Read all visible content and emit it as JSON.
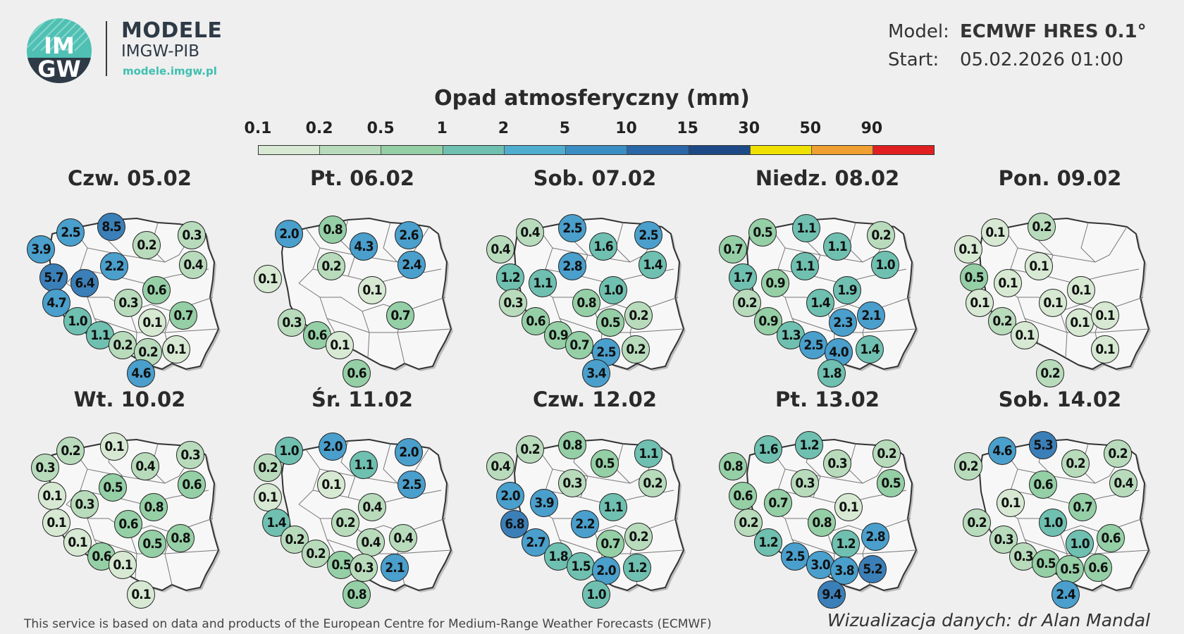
{
  "brand": {
    "logo_text_top": "IM",
    "logo_text_bottom": "GW",
    "title": "MODELE",
    "subtitle": "IMGW-PIB",
    "url": "modele.imgw.pl"
  },
  "meta": {
    "model_label": "Model:",
    "model_value": "ECMWF HRES 0.1°",
    "start_label": "Start:",
    "start_value": "05.02.2026 01:00"
  },
  "legend": {
    "title": "Opad atmosferyczny (mm)",
    "ticks": [
      "0.1",
      "0.2",
      "0.5",
      "1",
      "2",
      "5",
      "10",
      "15",
      "30",
      "50",
      "90"
    ],
    "colors": [
      "#d7e9d3",
      "#b8dbbc",
      "#95cfa6",
      "#6fc0b0",
      "#4faed0",
      "#3b8ec4",
      "#2967a8",
      "#1d4a86",
      "#f0e000",
      "#f0a030",
      "#e02020"
    ]
  },
  "panels": [
    {
      "title": "Czw. 05.02",
      "values": [
        "2.5",
        "8.5",
        "0.2",
        "0.3",
        "3.9",
        "2.2",
        "0.4",
        "5.7",
        "6.4",
        "0.6",
        "0.3",
        "4.7",
        "1.0",
        "0.1",
        "0.7",
        "1.1",
        "0.2",
        "0.2",
        "0.1",
        "4.6"
      ]
    },
    {
      "title": "Pt. 06.02",
      "values": [
        "2.0",
        "0.8",
        "4.3",
        "2.6",
        "0.2",
        "2.4",
        "0.1",
        "0.1",
        "0.7",
        "0.3",
        "0.6",
        "0.1",
        "0.6"
      ]
    },
    {
      "title": "Sob. 07.02",
      "values": [
        "0.4",
        "2.5",
        "2.5",
        "0.4",
        "1.6",
        "2.8",
        "1.4",
        "1.2",
        "1.1",
        "1.0",
        "0.3",
        "0.8",
        "0.6",
        "0.5",
        "0.2",
        "0.9",
        "0.7",
        "2.5",
        "0.2",
        "3.4"
      ]
    },
    {
      "title": "Niedz. 08.02",
      "values": [
        "0.5",
        "1.1",
        "0.2",
        "0.7",
        "1.1",
        "1.1",
        "1.0",
        "1.7",
        "0.9",
        "1.9",
        "0.2",
        "1.4",
        "0.9",
        "2.3",
        "2.1",
        "1.3",
        "2.5",
        "4.0",
        "1.4",
        "1.8"
      ]
    },
    {
      "title": "Pon. 09.02",
      "values": [
        "0.1",
        "0.2",
        "0.1",
        "0.1",
        "0.5",
        "0.1",
        "0.1",
        "0.1",
        "0.1",
        "0.2",
        "0.1",
        "0.1",
        "0.1",
        "0.1",
        "0.2"
      ]
    },
    {
      "title": "Wt. 10.02",
      "values": [
        "0.2",
        "0.1",
        "0.3",
        "0.3",
        "0.4",
        "0.1",
        "0.6",
        "0.5",
        "0.3",
        "0.8",
        "0.1",
        "0.6",
        "0.1",
        "0.5",
        "0.8",
        "0.6",
        "0.1",
        "0.1"
      ]
    },
    {
      "title": "Śr. 11.02",
      "values": [
        "1.0",
        "2.0",
        "2.0",
        "0.2",
        "1.1",
        "0.1",
        "2.5",
        "0.1",
        "0.4",
        "1.4",
        "0.2",
        "0.2",
        "0.2",
        "0.4",
        "0.4",
        "0.5",
        "0.3",
        "2.1",
        "0.8"
      ]
    },
    {
      "title": "Czw. 12.02",
      "values": [
        "0.2",
        "0.8",
        "1.1",
        "0.4",
        "0.5",
        "0.3",
        "0.2",
        "2.0",
        "3.9",
        "1.1",
        "6.8",
        "2.2",
        "2.7",
        "0.7",
        "0.2",
        "1.8",
        "1.5",
        "2.0",
        "1.2",
        "1.0"
      ]
    },
    {
      "title": "Pt. 13.02",
      "values": [
        "1.6",
        "1.2",
        "0.2",
        "0.8",
        "0.3",
        "0.3",
        "0.5",
        "0.6",
        "0.7",
        "0.1",
        "0.2",
        "0.8",
        "1.2",
        "1.2",
        "2.8",
        "2.5",
        "3.0",
        "3.8",
        "5.2",
        "9.4"
      ]
    },
    {
      "title": "Sob. 14.02",
      "values": [
        "4.6",
        "5.3",
        "0.2",
        "0.2",
        "0.2",
        "0.4",
        "0.6",
        "0.1",
        "0.7",
        "0.2",
        "1.0",
        "0.3",
        "1.0",
        "0.6",
        "0.3",
        "0.5",
        "0.5",
        "0.6",
        "2.4"
      ]
    }
  ],
  "footer": {
    "credit_left": "This service is based on data and products of the European Centre for Medium-Range Weather Forecasts (ECMWF)",
    "credit_right": "Wizualizacja danych: dr Alan Mandal"
  }
}
